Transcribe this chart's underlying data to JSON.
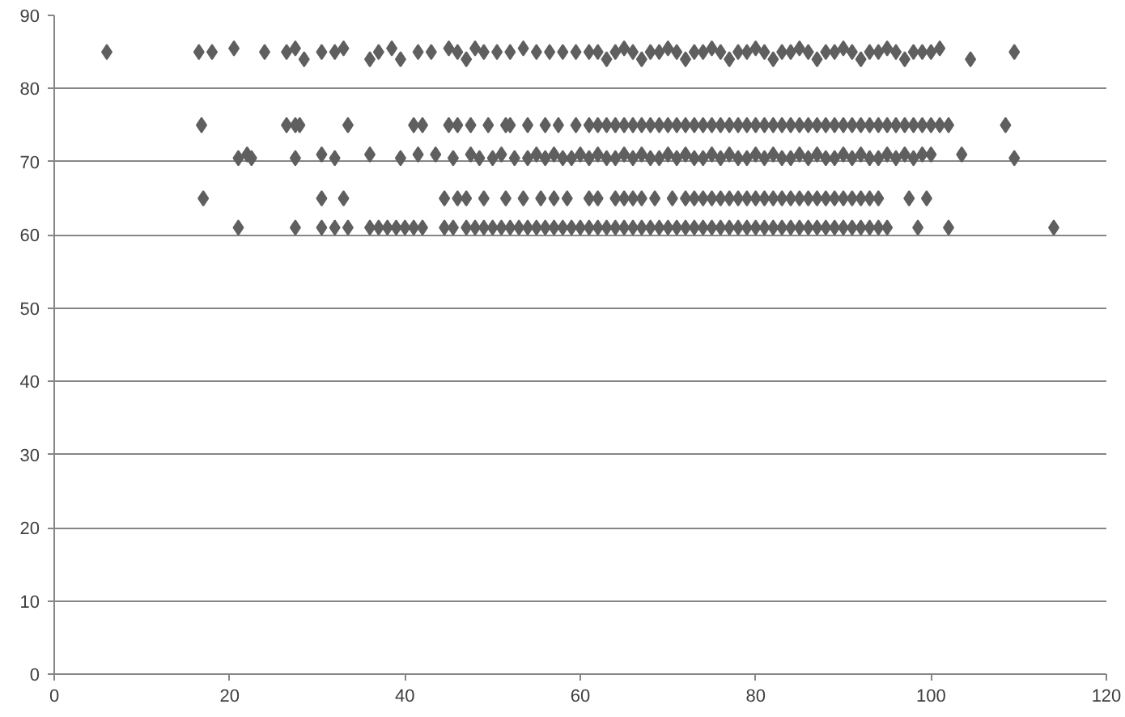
{
  "chart_data": {
    "type": "scatter",
    "marker": "diamond",
    "grid": "y",
    "xlim": [
      0,
      120
    ],
    "xticks": [
      0,
      20,
      40,
      60,
      80,
      100,
      120
    ],
    "ylim": [
      0,
      90
    ],
    "yticks": [
      0,
      10,
      20,
      30,
      40,
      50,
      60,
      70,
      80,
      90
    ],
    "series": [
      {
        "color": "#5f5f5f",
        "x": [
          6,
          16.5,
          18,
          20.5,
          24,
          26.5,
          27.5,
          28.5,
          30.5,
          32,
          33,
          36,
          37,
          38.5,
          39.5,
          41.5,
          43,
          45,
          46,
          47,
          48,
          49,
          50.5,
          52,
          53.5,
          55,
          56.5,
          58,
          59.5,
          61,
          62,
          63,
          64,
          65,
          66,
          67,
          68,
          69,
          70,
          71,
          72,
          73,
          74,
          75,
          76,
          77,
          78,
          79,
          80,
          81,
          82,
          83,
          84,
          85,
          86,
          87,
          88,
          89,
          90,
          91,
          92,
          93,
          94,
          95,
          96,
          97,
          98,
          99,
          100,
          101,
          104.5,
          109.5
        ],
        "values": [
          85,
          85,
          85,
          85.5,
          85,
          85,
          85.5,
          84,
          85,
          85,
          85.5,
          84,
          85,
          85.5,
          84,
          85,
          85,
          85.5,
          85,
          84,
          85.5,
          85,
          85,
          85,
          85.5,
          85,
          85,
          85,
          85,
          85,
          85,
          84,
          85,
          85.5,
          85,
          84,
          85,
          85,
          85.5,
          85,
          84,
          85,
          85,
          85.5,
          85,
          84,
          85,
          85,
          85.5,
          85,
          84,
          85,
          85,
          85.5,
          85,
          84,
          85,
          85,
          85.5,
          85,
          84,
          85,
          85,
          85.5,
          85,
          84,
          85,
          85,
          85,
          85.5,
          84,
          85
        ]
      },
      {
        "color": "#5f5f5f",
        "x": [
          16.8,
          26.5,
          27.5,
          28,
          33.5,
          41,
          42,
          45,
          46,
          47.5,
          49.5,
          51.5,
          52,
          54,
          56,
          57.5,
          59.5,
          61,
          62,
          63,
          64,
          65,
          66,
          67,
          68,
          69,
          70,
          71,
          72,
          73,
          74,
          75,
          76,
          77,
          78,
          79,
          80,
          81,
          82,
          83,
          84,
          85,
          86,
          87,
          88,
          89,
          90,
          91,
          92,
          93,
          94,
          95,
          96,
          97,
          98,
          99,
          100,
          101,
          102,
          108.5
        ],
        "values": [
          75,
          75,
          75,
          75,
          75,
          75,
          75,
          75,
          75,
          75,
          75,
          75,
          75,
          75,
          75,
          75,
          75,
          75,
          75,
          75,
          75,
          75,
          75,
          75,
          75,
          75,
          75,
          75,
          75,
          75,
          75,
          75,
          75,
          75,
          75,
          75,
          75,
          75,
          75,
          75,
          75,
          75,
          75,
          75,
          75,
          75,
          75,
          75,
          75,
          75,
          75,
          75,
          75,
          75,
          75,
          75,
          75,
          75,
          75,
          75
        ]
      },
      {
        "color": "#5f5f5f",
        "x": [
          21,
          22,
          22.5,
          27.5,
          30.5,
          32,
          36,
          39.5,
          41.5,
          43.5,
          45.5,
          47.5,
          48.5,
          50,
          51,
          52.5,
          54,
          55,
          56,
          57,
          58,
          59,
          60,
          61,
          62,
          63,
          64,
          65,
          66,
          67,
          68,
          69,
          70,
          71,
          72,
          73,
          74,
          75,
          76,
          77,
          78,
          79,
          80,
          81,
          82,
          83,
          84,
          85,
          86,
          87,
          88,
          89,
          90,
          91,
          92,
          93,
          94,
          95,
          96,
          97,
          98,
          99,
          100,
          103.5,
          109.5
        ],
        "values": [
          70.5,
          71,
          70.5,
          70.5,
          71,
          70.5,
          71,
          70.5,
          71,
          71,
          70.5,
          71,
          70.5,
          70.5,
          71,
          70.5,
          70.5,
          71,
          70.5,
          71,
          70.5,
          70.5,
          71,
          70.5,
          71,
          70.5,
          70.5,
          71,
          70.5,
          71,
          70.5,
          70.5,
          71,
          70.5,
          71,
          70.5,
          70.5,
          71,
          70.5,
          71,
          70.5,
          70.5,
          71,
          70.5,
          71,
          70.5,
          70.5,
          71,
          70.5,
          71,
          70.5,
          70.5,
          71,
          70.5,
          71,
          70.5,
          70.5,
          71,
          70.5,
          71,
          70.5,
          71,
          71,
          71,
          70.5
        ]
      },
      {
        "color": "#5f5f5f",
        "x": [
          17,
          30.5,
          33,
          44.5,
          46,
          47,
          49,
          51.5,
          53.5,
          55.5,
          57,
          58.5,
          61,
          62,
          64,
          65,
          66,
          67,
          68.5,
          70.5,
          72,
          73,
          74,
          75,
          76,
          77,
          78,
          79,
          80,
          81,
          82,
          83,
          84,
          85,
          86,
          87,
          88,
          89,
          90,
          91,
          92,
          93,
          94,
          97.5,
          99.5
        ],
        "values": [
          65,
          65,
          65,
          65,
          65,
          65,
          65,
          65,
          65,
          65,
          65,
          65,
          65,
          65,
          65,
          65,
          65,
          65,
          65,
          65,
          65,
          65,
          65,
          65,
          65,
          65,
          65,
          65,
          65,
          65,
          65,
          65,
          65,
          65,
          65,
          65,
          65,
          65,
          65,
          65,
          65,
          65,
          65,
          65,
          65
        ]
      },
      {
        "color": "#5f5f5f",
        "x": [
          21,
          27.5,
          30.5,
          32,
          33.5,
          36,
          37,
          38,
          39,
          40,
          41,
          42,
          44.5,
          45.5,
          47,
          48,
          49,
          50,
          51,
          52,
          53,
          54,
          55,
          56,
          57,
          58,
          59,
          60,
          61,
          62,
          63,
          64,
          65,
          66,
          67,
          68,
          69,
          70,
          71,
          72,
          73,
          74,
          75,
          76,
          77,
          78,
          79,
          80,
          81,
          82,
          83,
          84,
          85,
          86,
          87,
          88,
          89,
          90,
          91,
          92,
          93,
          94,
          95,
          98.5,
          102,
          114
        ],
        "values": [
          61,
          61,
          61,
          61,
          61,
          61,
          61,
          61,
          61,
          61,
          61,
          61,
          61,
          61,
          61,
          61,
          61,
          61,
          61,
          61,
          61,
          61,
          61,
          61,
          61,
          61,
          61,
          61,
          61,
          61,
          61,
          61,
          61,
          61,
          61,
          61,
          61,
          61,
          61,
          61,
          61,
          61,
          61,
          61,
          61,
          61,
          61,
          61,
          61,
          61,
          61,
          61,
          61,
          61,
          61,
          61,
          61,
          61,
          61,
          61,
          61,
          61,
          61,
          61,
          61,
          61
        ]
      }
    ]
  }
}
